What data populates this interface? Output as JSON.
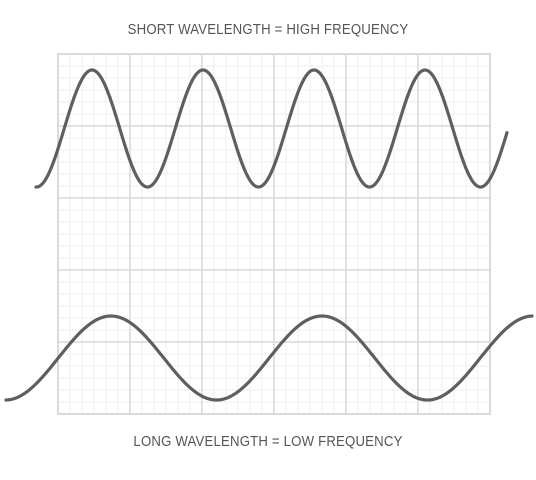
{
  "labels": {
    "short_wavelength": "SHORT WAVELENGTH = HIGH FREQUENCY",
    "long_wavelength": "LONG WAVELENGTH = LOW FREQUENCY"
  },
  "colors": {
    "wave": "#5f5f5f",
    "text": "#555555",
    "grid_major": "#d9d9d9",
    "grid_minor": "#efefef",
    "background": "#ffffff"
  },
  "waves": [
    {
      "id": "short-wave",
      "cycles_shown": 4,
      "relative_wavelength": 1.0
    },
    {
      "id": "long-wave",
      "cycles_shown": 2,
      "relative_wavelength": 2.0
    }
  ]
}
